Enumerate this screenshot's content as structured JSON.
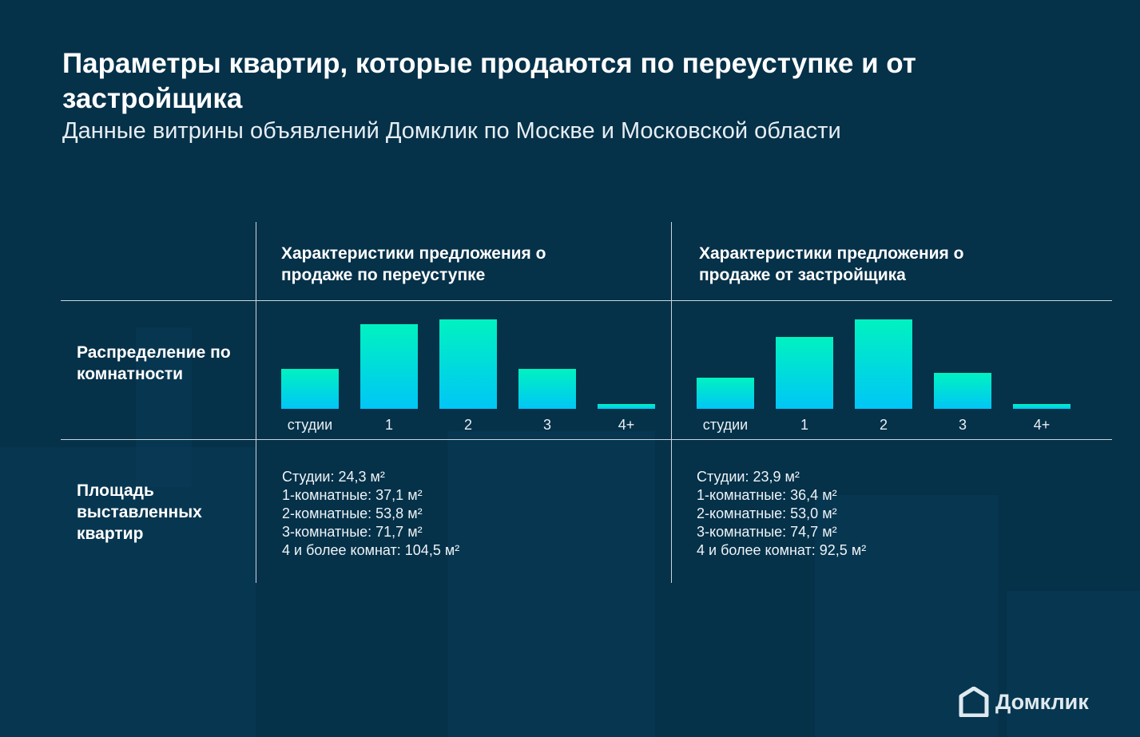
{
  "header": {
    "title": "Параметры квартир, которые продаются по переуступке и от застройщика",
    "subtitle": "Данные витрины объявлений Домклик по Москве и Московской области"
  },
  "table": {
    "columns": [
      "Характеристики предложения о продаже по переуступке",
      "Характеристики предложения о продаже от застройщика"
    ],
    "rows": [
      "Распределение по комнатности",
      "Площадь выставленных квартир"
    ]
  },
  "chart_data": [
    {
      "type": "bar",
      "categories": [
        "студии",
        "1",
        "2",
        "3",
        "4+"
      ],
      "values": [
        45,
        95,
        100,
        45,
        5
      ],
      "ylim": [
        0,
        100
      ],
      "grid": false,
      "color": "#00e6c8"
    },
    {
      "type": "bar",
      "categories": [
        "студии",
        "1",
        "2",
        "3",
        "4+"
      ],
      "values": [
        35,
        80,
        100,
        40,
        5
      ],
      "ylim": [
        0,
        100
      ],
      "grid": false,
      "color": "#00e6c8"
    }
  ],
  "areas": [
    [
      "Студии: 24,3 м²",
      "1-комнатные: 37,1 м²",
      "2-комнатные: 53,8 м²",
      "3-комнатные: 71,7 м²",
      "4 и более комнат: 104,5 м²"
    ],
    [
      "Студии: 23,9 м²",
      "1-комнатные: 36,4 м²",
      "2-комнатные: 53,0 м²",
      "3-комнатные: 74,7 м²",
      "4 и более комнат: 92,5 м²"
    ]
  ],
  "brand": {
    "name": "Домклик",
    "icon": "house-logo-icon"
  }
}
